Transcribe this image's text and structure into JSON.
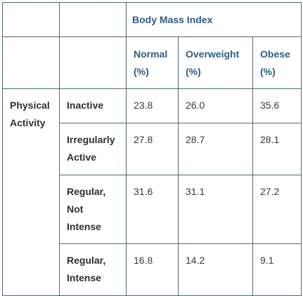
{
  "table": {
    "group_header": "Body Mass Index",
    "columns": [
      {
        "line1": "Normal",
        "line2": "(%)"
      },
      {
        "line1": "Overweight",
        "line2": "(%)"
      },
      {
        "line1": "Obese",
        "line2": "(%)"
      }
    ],
    "section": {
      "line1": "Physical",
      "line2": "Activity"
    },
    "rows": [
      {
        "label_lines": [
          "Inactive"
        ],
        "values": [
          "23.8",
          "26.0",
          "35.6"
        ]
      },
      {
        "label_lines": [
          "Irregularly",
          "Active"
        ],
        "values": [
          "27.8",
          "28.7",
          "28.1"
        ]
      },
      {
        "label_lines": [
          "Regular,",
          "Not",
          "Intense"
        ],
        "values": [
          "31.6",
          "31.1",
          "27.2"
        ]
      },
      {
        "label_lines": [
          "Regular,",
          "Intense"
        ],
        "values": [
          "16.8",
          "14.2",
          "9.1"
        ]
      }
    ]
  }
}
